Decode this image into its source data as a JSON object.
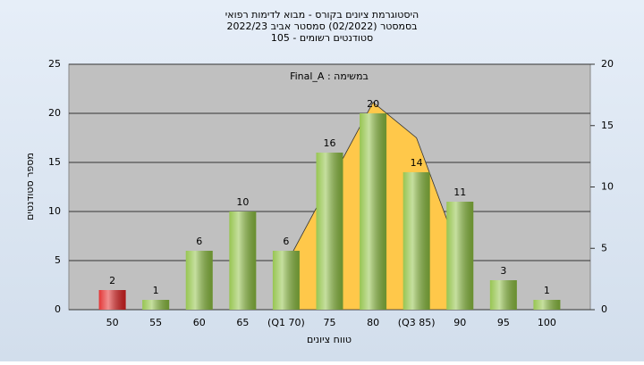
{
  "chart_data": {
    "type": "bar",
    "title": [
      "היסטוגרמת ציונים בקורס - מבוא לדימות רפואי",
      "בסמסטר  (02/2022)  סמסטר אביב 2022/23",
      "סטודנטים רשומים - 105"
    ],
    "annotation": "Final_A : במשימה",
    "xlabel": "טווח ציונים",
    "ylabel": "מספר סטודנטים",
    "categories": [
      "50",
      "55",
      "60",
      "65",
      "(Q1 70)",
      "75",
      "80",
      "(Q3 85)",
      "90",
      "95",
      "100"
    ],
    "values": [
      2,
      1,
      6,
      10,
      6,
      16,
      20,
      14,
      11,
      3,
      1
    ],
    "colors": [
      "#e02020",
      "#8cbf3f",
      "#8cbf3f",
      "#8cbf3f",
      "#8cbf3f",
      "#8cbf3f",
      "#8cbf3f",
      "#8cbf3f",
      "#8cbf3f",
      "#8cbf3f",
      "#8cbf3f"
    ],
    "area": {
      "axis": "y2",
      "color": "#ffc84a",
      "values": [
        null,
        null,
        null,
        null,
        3.7,
        10.3,
        16.9,
        14,
        4.5,
        null,
        null
      ]
    },
    "ylim": [
      0,
      25
    ],
    "yticks": [
      0,
      5,
      10,
      15,
      20,
      25
    ],
    "y2lim": [
      0,
      20
    ],
    "y2ticks": [
      0,
      5,
      10,
      15,
      20
    ],
    "grid": true
  }
}
